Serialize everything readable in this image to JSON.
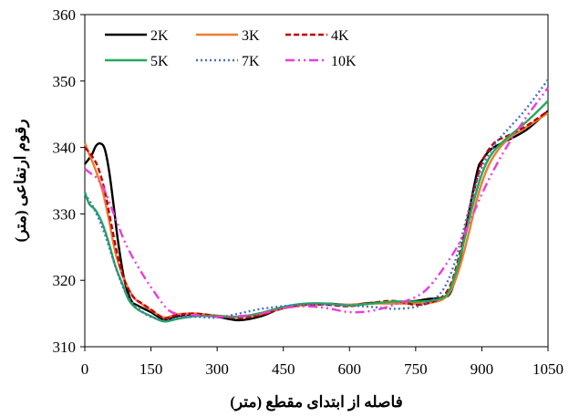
{
  "chart_data": {
    "type": "line",
    "title": "",
    "xlabel": "فاصله از ابتدای مقطع (متر)",
    "ylabel": "رقوم ارتفاعی (متر)",
    "xlim": [
      0,
      1050
    ],
    "ylim": [
      310,
      360
    ],
    "xticks": [
      0,
      150,
      300,
      450,
      600,
      750,
      900,
      1050
    ],
    "yticks": [
      310,
      320,
      330,
      340,
      350,
      360
    ],
    "grid": false,
    "legend_position": "top-left",
    "series": [
      {
        "name": "2K",
        "color": "#000000",
        "dash": "solid",
        "x": [
          0,
          15,
          25,
          35,
          45,
          55,
          65,
          75,
          90,
          105,
          120,
          150,
          180,
          210,
          250,
          300,
          350,
          400,
          450,
          500,
          550,
          600,
          650,
          700,
          750,
          780,
          810,
          830,
          850,
          870,
          890,
          900,
          920,
          950,
          1000,
          1050
        ],
        "y": [
          337.5,
          338.8,
          340.2,
          340.6,
          339.8,
          336.5,
          331.5,
          326.0,
          320.0,
          317.0,
          316.2,
          315.2,
          314.1,
          314.6,
          314.9,
          314.5,
          314.0,
          314.6,
          315.9,
          316.4,
          316.5,
          316.3,
          316.6,
          316.6,
          316.9,
          317.2,
          317.4,
          318.3,
          323.0,
          330.0,
          336.5,
          338.0,
          339.7,
          340.8,
          342.6,
          345.5
        ]
      },
      {
        "name": "3K",
        "color": "#ed7d31",
        "dash": "solid",
        "x": [
          0,
          10,
          25,
          40,
          55,
          70,
          90,
          110,
          130,
          150,
          180,
          210,
          250,
          300,
          350,
          400,
          450,
          500,
          550,
          600,
          650,
          700,
          750,
          780,
          810,
          830,
          850,
          870,
          890,
          910,
          930,
          960,
          1000,
          1050
        ],
        "y": [
          340.7,
          339.0,
          336.5,
          333.5,
          329.0,
          324.0,
          320.0,
          317.5,
          316.4,
          315.5,
          314.4,
          314.9,
          315.0,
          314.7,
          314.5,
          314.9,
          315.8,
          316.3,
          316.4,
          316.3,
          316.5,
          316.5,
          316.5,
          316.6,
          317.1,
          318.5,
          322.0,
          327.0,
          332.5,
          336.5,
          339.0,
          341.3,
          343.0,
          345.2
        ]
      },
      {
        "name": "4K",
        "color": "#c00000",
        "dash": "6,3",
        "x": [
          0,
          15,
          30,
          45,
          60,
          75,
          90,
          110,
          130,
          150,
          180,
          210,
          250,
          300,
          350,
          400,
          450,
          500,
          550,
          600,
          650,
          700,
          750,
          780,
          810,
          830,
          850,
          870,
          890,
          905,
          930,
          960,
          1000,
          1050
        ],
        "y": [
          340.0,
          338.8,
          337.0,
          333.5,
          328.5,
          323.5,
          320.0,
          317.5,
          316.5,
          315.6,
          314.3,
          314.8,
          315.0,
          314.6,
          314.3,
          314.8,
          315.8,
          316.3,
          316.3,
          316.1,
          316.6,
          316.9,
          316.3,
          316.6,
          317.5,
          319.5,
          324.0,
          330.0,
          335.5,
          338.5,
          340.8,
          341.8,
          343.2,
          345.5
        ]
      },
      {
        "name": "5K",
        "color": "#22aa58",
        "dash": "solid",
        "x": [
          0,
          10,
          25,
          40,
          55,
          70,
          85,
          100,
          120,
          150,
          180,
          210,
          250,
          300,
          350,
          400,
          450,
          500,
          550,
          600,
          650,
          700,
          750,
          790,
          820,
          840,
          860,
          880,
          900,
          920,
          950,
          1000,
          1050
        ],
        "y": [
          333.3,
          331.5,
          330.5,
          328.5,
          325.5,
          322.0,
          319.5,
          317.0,
          315.6,
          314.6,
          313.8,
          314.2,
          314.6,
          314.6,
          314.5,
          315.1,
          316.0,
          316.5,
          316.5,
          316.2,
          316.5,
          316.8,
          316.8,
          317.0,
          317.8,
          321.0,
          326.0,
          331.5,
          336.0,
          338.8,
          341.0,
          343.8,
          347.0
        ]
      },
      {
        "name": "7K",
        "color": "#4472c4",
        "dash": "2,3",
        "x": [
          0,
          15,
          30,
          45,
          60,
          75,
          90,
          110,
          130,
          150,
          180,
          210,
          250,
          300,
          350,
          400,
          450,
          500,
          550,
          600,
          650,
          700,
          750,
          780,
          800,
          820,
          840,
          860,
          880,
          900,
          930,
          960,
          1000,
          1050
        ],
        "y": [
          333.0,
          331.5,
          329.5,
          327.0,
          324.0,
          321.0,
          318.5,
          316.5,
          315.3,
          314.5,
          314.0,
          314.3,
          314.5,
          314.4,
          315.0,
          315.7,
          316.1,
          316.4,
          316.3,
          316.2,
          316.0,
          315.7,
          316.0,
          316.8,
          317.6,
          319.5,
          323.0,
          328.0,
          333.0,
          337.0,
          340.5,
          342.8,
          345.8,
          350.2
        ]
      },
      {
        "name": "10K",
        "color": "#ee3bd9",
        "dash": "10,4,2,4,2,4",
        "x": [
          0,
          15,
          30,
          45,
          60,
          80,
          100,
          130,
          160,
          190,
          220,
          250,
          300,
          350,
          400,
          450,
          500,
          550,
          600,
          650,
          700,
          750,
          780,
          820,
          860,
          900,
          930,
          960,
          1000,
          1050
        ],
        "y": [
          336.8,
          336.0,
          335.2,
          333.5,
          331.0,
          327.5,
          324.5,
          321.0,
          318.0,
          315.5,
          314.8,
          314.8,
          314.5,
          314.6,
          315.0,
          315.8,
          316.1,
          315.8,
          315.2,
          315.4,
          316.3,
          317.5,
          319.0,
          322.5,
          327.0,
          333.0,
          337.0,
          340.5,
          344.5,
          349.0
        ]
      }
    ]
  }
}
